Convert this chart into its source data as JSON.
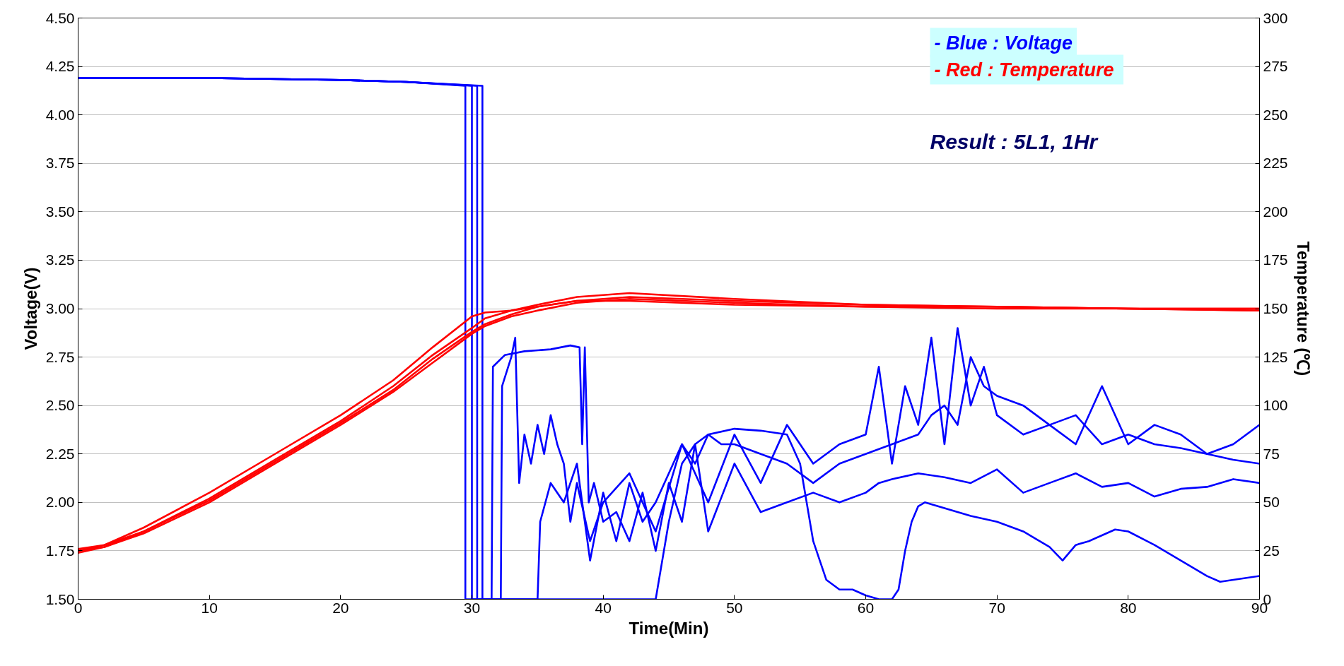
{
  "chart_data": {
    "type": "line",
    "xlabel": "Time(Min)",
    "ylabel": "Voltage(V)",
    "y2label": "Temperature (℃)",
    "annotations": [
      "- Blue : Voltage",
      "- Red  : Temperature",
      "Result : 5L1, 1Hr"
    ],
    "xlim": [
      0,
      90
    ],
    "xticks": [
      0,
      10,
      20,
      30,
      40,
      50,
      60,
      70,
      80,
      90
    ],
    "ylim": [
      1.5,
      4.5
    ],
    "yticks": [
      {
        "value": 1.5,
        "label": "1.50"
      },
      {
        "value": 1.75,
        "label": "1.75"
      },
      {
        "value": 2,
        "label": "2.00"
      },
      {
        "value": 2.25,
        "label": "2.25"
      },
      {
        "value": 2.5,
        "label": "2.50"
      },
      {
        "value": 2.75,
        "label": "2.75"
      },
      {
        "value": 3,
        "label": "3.00"
      },
      {
        "value": 3.25,
        "label": "3.25"
      },
      {
        "value": 3.5,
        "label": "3.50"
      },
      {
        "value": 3.75,
        "label": "3.75"
      },
      {
        "value": 4,
        "label": "4.00"
      },
      {
        "value": 4.25,
        "label": "4.25"
      },
      {
        "value": 4.5,
        "label": "4.50"
      }
    ],
    "y2lim": [
      0,
      300
    ],
    "y2ticks": [
      0,
      25,
      50,
      75,
      100,
      125,
      150,
      175,
      200,
      225,
      250,
      275,
      300
    ],
    "grid": "y",
    "marker": "none",
    "line_style": "solid",
    "series": [
      {
        "color": "#0000ff",
        "x": [
          0,
          10,
          20,
          25,
          29.5,
          29.5,
          31.5,
          31.6,
          32.5,
          34,
          36,
          37.5,
          38.2,
          38.4,
          38.6,
          38.9,
          39.3,
          40,
          41,
          42,
          43,
          44,
          45,
          46,
          47,
          48,
          50,
          52,
          54,
          56,
          58,
          60,
          61,
          62,
          64,
          66,
          68,
          70,
          72,
          74,
          76,
          78,
          80,
          82,
          84,
          86,
          88,
          90
        ],
        "values": [
          4.19,
          4.19,
          4.18,
          4.17,
          4.15,
          1.5,
          1.5,
          2.7,
          2.76,
          2.78,
          2.79,
          2.81,
          2.8,
          2.3,
          2.8,
          2.0,
          2.1,
          1.9,
          1.95,
          1.8,
          2.05,
          1.75,
          2.1,
          1.9,
          2.3,
          1.85,
          2.2,
          1.95,
          2.0,
          2.05,
          2.0,
          2.05,
          2.1,
          2.12,
          2.15,
          2.13,
          2.1,
          2.17,
          2.05,
          2.1,
          2.15,
          2.08,
          2.1,
          2.03,
          2.07,
          2.08,
          2.12,
          2.1
        ]
      },
      {
        "color": "#0000ff",
        "x": [
          0,
          10,
          20,
          25,
          30,
          30,
          32.2,
          32.3,
          33,
          33.3,
          33.6,
          34,
          34.5,
          35,
          35.5,
          36,
          36.5,
          37,
          37.5,
          38,
          39,
          40,
          42,
          44,
          46,
          48,
          50,
          52,
          54,
          56,
          58,
          60,
          61,
          62,
          63,
          64,
          65,
          66,
          67,
          68,
          69,
          70,
          72,
          74,
          76,
          78,
          80,
          82,
          84,
          86,
          88,
          90
        ],
        "values": [
          4.19,
          4.19,
          4.18,
          4.17,
          4.15,
          1.5,
          1.5,
          2.6,
          2.75,
          2.85,
          2.1,
          2.35,
          2.2,
          2.4,
          2.25,
          2.45,
          2.3,
          2.2,
          1.9,
          2.1,
          1.8,
          2.0,
          2.15,
          1.85,
          2.3,
          2.0,
          2.35,
          2.1,
          2.4,
          2.2,
          2.3,
          2.35,
          2.7,
          2.2,
          2.6,
          2.4,
          2.85,
          2.3,
          2.9,
          2.5,
          2.7,
          2.45,
          2.35,
          2.4,
          2.3,
          2.6,
          2.3,
          2.4,
          2.35,
          2.25,
          2.3,
          2.4
        ]
      },
      {
        "color": "#0000ff",
        "x": [
          0,
          10,
          20,
          25,
          30.4,
          30.4,
          44,
          45,
          46,
          47,
          48,
          50,
          52,
          54,
          55,
          56,
          57,
          58,
          59,
          60,
          61,
          62,
          62.5,
          63,
          63.5,
          64,
          64.5,
          66,
          68,
          70,
          72,
          74,
          75,
          76,
          77,
          78,
          79,
          80,
          82,
          84,
          86,
          87,
          88,
          90
        ],
        "values": [
          4.19,
          4.19,
          4.18,
          4.17,
          4.15,
          1.5,
          1.5,
          1.9,
          2.2,
          2.3,
          2.35,
          2.38,
          2.37,
          2.35,
          2.2,
          1.8,
          1.6,
          1.55,
          1.55,
          1.52,
          1.5,
          1.5,
          1.55,
          1.75,
          1.9,
          1.98,
          2.0,
          1.97,
          1.93,
          1.9,
          1.85,
          1.77,
          1.7,
          1.78,
          1.8,
          1.83,
          1.86,
          1.85,
          1.78,
          1.7,
          1.62,
          1.59,
          1.6,
          1.62
        ]
      },
      {
        "color": "#0000ff",
        "x": [
          0,
          10,
          20,
          25,
          30.8,
          30.8,
          35,
          35.2,
          36,
          37,
          38,
          39,
          40,
          41,
          42,
          43,
          44,
          45,
          46,
          47,
          48,
          49,
          50,
          52,
          54,
          56,
          58,
          60,
          62,
          64,
          65,
          66,
          67,
          68,
          69,
          70,
          72,
          74,
          76,
          78,
          80,
          82,
          84,
          86,
          88,
          90
        ],
        "values": [
          4.19,
          4.19,
          4.18,
          4.17,
          4.15,
          1.5,
          1.5,
          1.9,
          2.1,
          2.0,
          2.2,
          1.7,
          2.05,
          1.8,
          2.1,
          1.9,
          2.0,
          2.15,
          2.3,
          2.2,
          2.35,
          2.3,
          2.3,
          2.25,
          2.2,
          2.1,
          2.2,
          2.25,
          2.3,
          2.35,
          2.45,
          2.5,
          2.4,
          2.75,
          2.6,
          2.55,
          2.5,
          2.4,
          2.45,
          2.3,
          2.35,
          2.3,
          2.28,
          2.25,
          2.22,
          2.2
        ]
      },
      {
        "color": "#ff0000",
        "axis": "y2",
        "x": [
          0,
          2,
          5,
          10,
          15,
          20,
          24,
          27,
          30,
          31,
          33,
          35,
          38,
          42,
          50,
          60,
          70,
          80,
          90
        ],
        "values": [
          25,
          28,
          37,
          55,
          75,
          95,
          113,
          130,
          146,
          148,
          149,
          151,
          154,
          156,
          154,
          152,
          151,
          150,
          150
        ]
      },
      {
        "color": "#ff0000",
        "axis": "y2",
        "x": [
          0,
          2,
          5,
          10,
          15,
          20,
          24,
          27,
          30,
          31,
          33,
          35,
          38,
          42,
          50,
          60,
          70,
          80,
          90
        ],
        "values": [
          24,
          27,
          35,
          52,
          72,
          92,
          110,
          126,
          140,
          145,
          149,
          152,
          156,
          158,
          155,
          152,
          151,
          150,
          150
        ]
      },
      {
        "color": "#ff0000",
        "axis": "y2",
        "x": [
          0,
          2,
          5,
          10,
          15,
          20,
          24,
          27,
          30,
          31,
          33,
          35,
          38,
          42,
          50,
          60,
          70,
          80,
          90
        ],
        "values": [
          25,
          27,
          34,
          50,
          70,
          90,
          107,
          122,
          137,
          141,
          146,
          149,
          153,
          155,
          153,
          151,
          150,
          150,
          149
        ]
      },
      {
        "color": "#ff0000",
        "axis": "y2",
        "x": [
          0,
          2,
          5,
          10,
          15,
          20,
          24,
          27,
          30,
          31,
          33,
          35,
          38,
          42,
          50,
          60,
          70,
          80,
          90
        ],
        "values": [
          26,
          28,
          35,
          51,
          71,
          91,
          108,
          124,
          138,
          142,
          147,
          151,
          154,
          154,
          152,
          151,
          151,
          150,
          149
        ]
      }
    ]
  }
}
